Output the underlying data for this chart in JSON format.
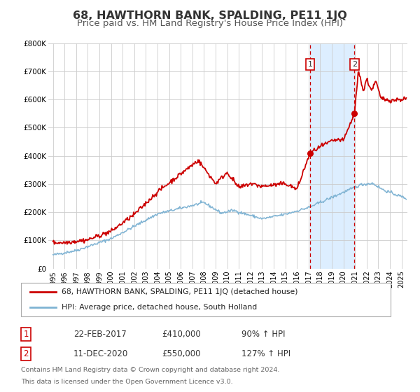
{
  "title": "68, HAWTHORN BANK, SPALDING, PE11 1JQ",
  "subtitle": "Price paid vs. HM Land Registry's House Price Index (HPI)",
  "ylim": [
    0,
    800000
  ],
  "yticks": [
    0,
    100000,
    200000,
    300000,
    400000,
    500000,
    600000,
    700000,
    800000
  ],
  "ytick_labels": [
    "£0",
    "£100K",
    "£200K",
    "£300K",
    "£400K",
    "£500K",
    "£600K",
    "£700K",
    "£800K"
  ],
  "xlim_start": 1994.6,
  "xlim_end": 2025.5,
  "marker1_x": 2017.12,
  "marker1_y": 410000,
  "marker2_x": 2020.95,
  "marker2_y": 550000,
  "shade_start": 2017.12,
  "shade_end": 2020.95,
  "line1_color": "#cc0000",
  "line2_color": "#7fb3d3",
  "shade_color": "#ddeeff",
  "vline_color": "#cc0000",
  "legend_line1": "68, HAWTHORN BANK, SPALDING, PE11 1JQ (detached house)",
  "legend_line2": "HPI: Average price, detached house, South Holland",
  "annotation1_date": "22-FEB-2017",
  "annotation1_price": "£410,000",
  "annotation1_hpi": "90% ↑ HPI",
  "annotation2_date": "11-DEC-2020",
  "annotation2_price": "£550,000",
  "annotation2_hpi": "127% ↑ HPI",
  "footer_line1": "Contains HM Land Registry data © Crown copyright and database right 2024.",
  "footer_line2": "This data is licensed under the Open Government Licence v3.0.",
  "background_color": "#ffffff",
  "grid_color": "#cccccc",
  "title_fontsize": 11.5,
  "subtitle_fontsize": 9.5
}
